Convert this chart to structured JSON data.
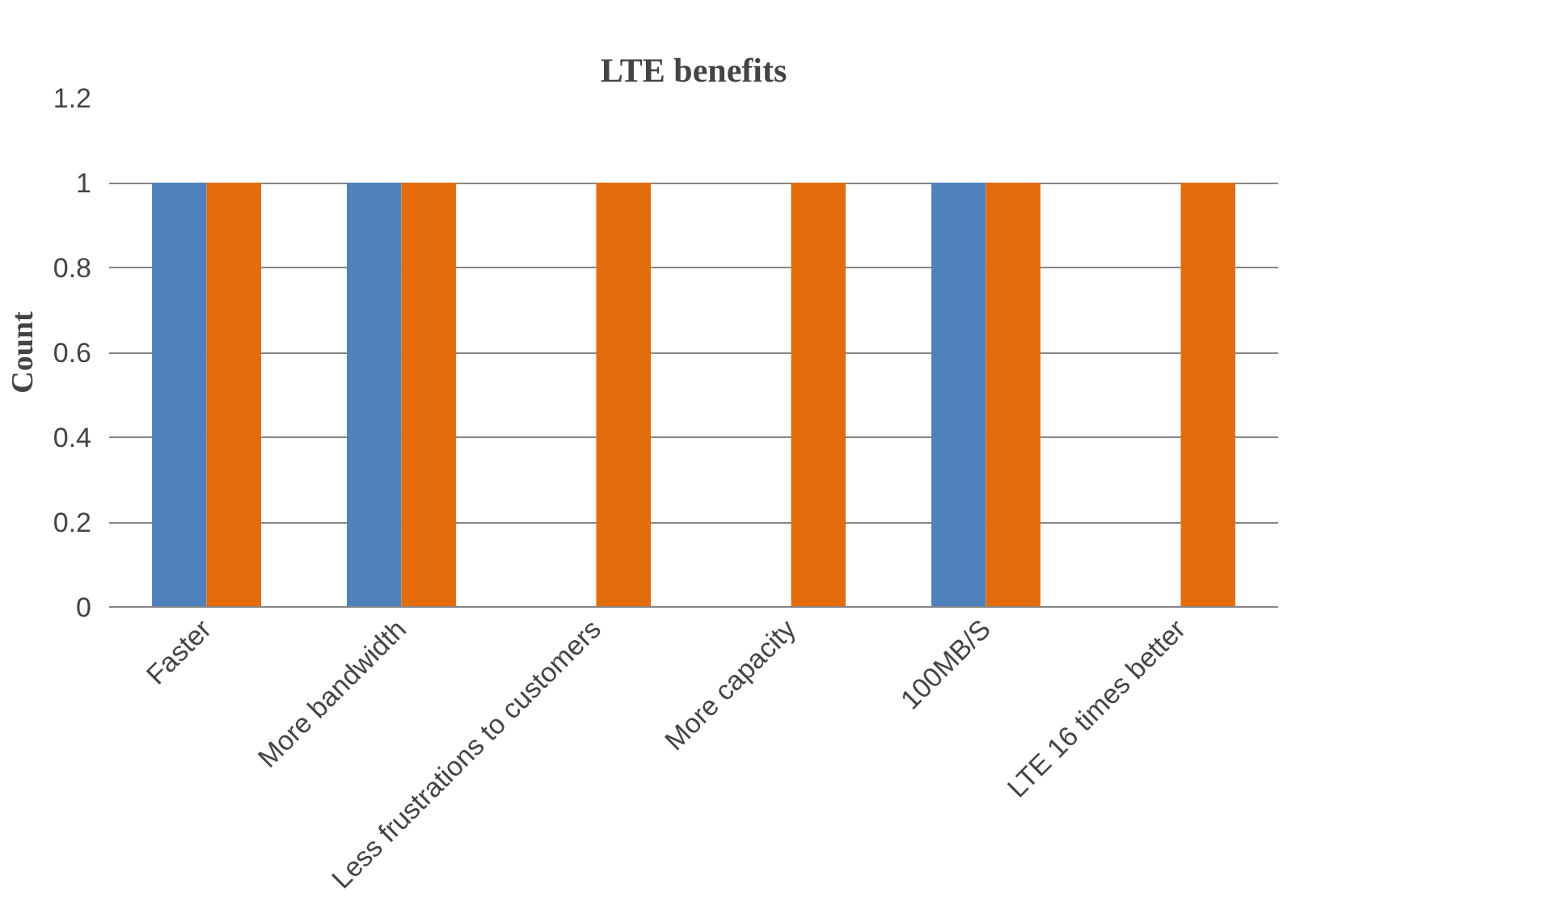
{
  "chart_data": {
    "type": "bar",
    "title": "LTE benefits",
    "ylabel": "Count",
    "categories": [
      "Faster",
      "More bandwidth",
      "Less frustrations to customers",
      "More capacity",
      "100MB/S",
      "LTE 16 times better"
    ],
    "series": [
      {
        "color": "#4f81bd",
        "values": [
          1,
          1,
          0,
          0,
          1,
          0
        ]
      },
      {
        "color": "#e46c0a",
        "values": [
          1,
          1,
          1,
          1,
          1,
          1
        ]
      }
    ],
    "ylim": [
      0,
      1.2
    ],
    "yticks": [
      {
        "value": 0,
        "label": "0"
      },
      0.2,
      0.4,
      0.6,
      0.8,
      {
        "value": 1,
        "label": "1"
      },
      1.2
    ],
    "grid": "y"
  }
}
